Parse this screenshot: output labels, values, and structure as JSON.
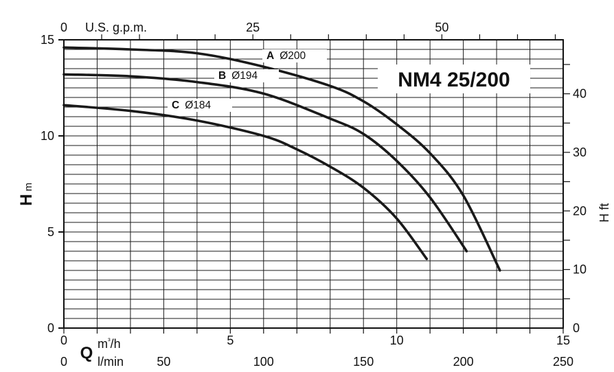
{
  "chart_data": {
    "type": "line",
    "title": "NM4 25/200",
    "xlim": [
      0,
      15
    ],
    "ylim": [
      0,
      15
    ],
    "x_axis_primary": {
      "symbol": "Q",
      "unit": "m³/h",
      "ticks": [
        "0",
        "5",
        "10",
        "15"
      ],
      "tick_values": [
        0,
        5,
        10,
        15
      ]
    },
    "x_axis_secondary": {
      "unit": "l/min",
      "ticks": [
        "0",
        "50",
        "100",
        "150",
        "200",
        "250"
      ],
      "tick_values": [
        0,
        50,
        100,
        150,
        200,
        250
      ]
    },
    "x_axis_top": {
      "unit": "U.S. g.p.m.",
      "ticks": [
        "0",
        "25",
        "50"
      ],
      "tick_values": [
        0,
        25,
        50
      ]
    },
    "y_axis_left": {
      "symbol": "H",
      "unit": "m",
      "ticks": [
        "0",
        "5",
        "10",
        "15"
      ],
      "tick_values": [
        0,
        5,
        10,
        15
      ]
    },
    "y_axis_right": {
      "label": "H ft",
      "ticks": [
        "0",
        "10",
        "20",
        "30",
        "40"
      ],
      "tick_values": [
        0,
        10,
        20,
        30,
        40
      ]
    },
    "grid": true,
    "series": [
      {
        "letter": "A",
        "name": "Ø200",
        "x": [
          0,
          2,
          4,
          6,
          8,
          9,
          10,
          11,
          12,
          13.1
        ],
        "y": [
          14.6,
          14.5,
          14.3,
          13.6,
          12.6,
          11.8,
          10.6,
          9.1,
          6.9,
          3.0
        ]
      },
      {
        "letter": "B",
        "name": "Ø194",
        "x": [
          0,
          2,
          4,
          6,
          8,
          9,
          10,
          11,
          12.1
        ],
        "y": [
          13.2,
          13.1,
          12.8,
          12.2,
          10.9,
          10.1,
          8.7,
          6.8,
          4.0
        ]
      },
      {
        "letter": "C",
        "name": "Ø184",
        "x": [
          0,
          2,
          4,
          6,
          7,
          8,
          9,
          10,
          10.9
        ],
        "y": [
          11.6,
          11.3,
          10.8,
          10.0,
          9.3,
          8.4,
          7.3,
          5.7,
          3.6
        ]
      }
    ]
  }
}
